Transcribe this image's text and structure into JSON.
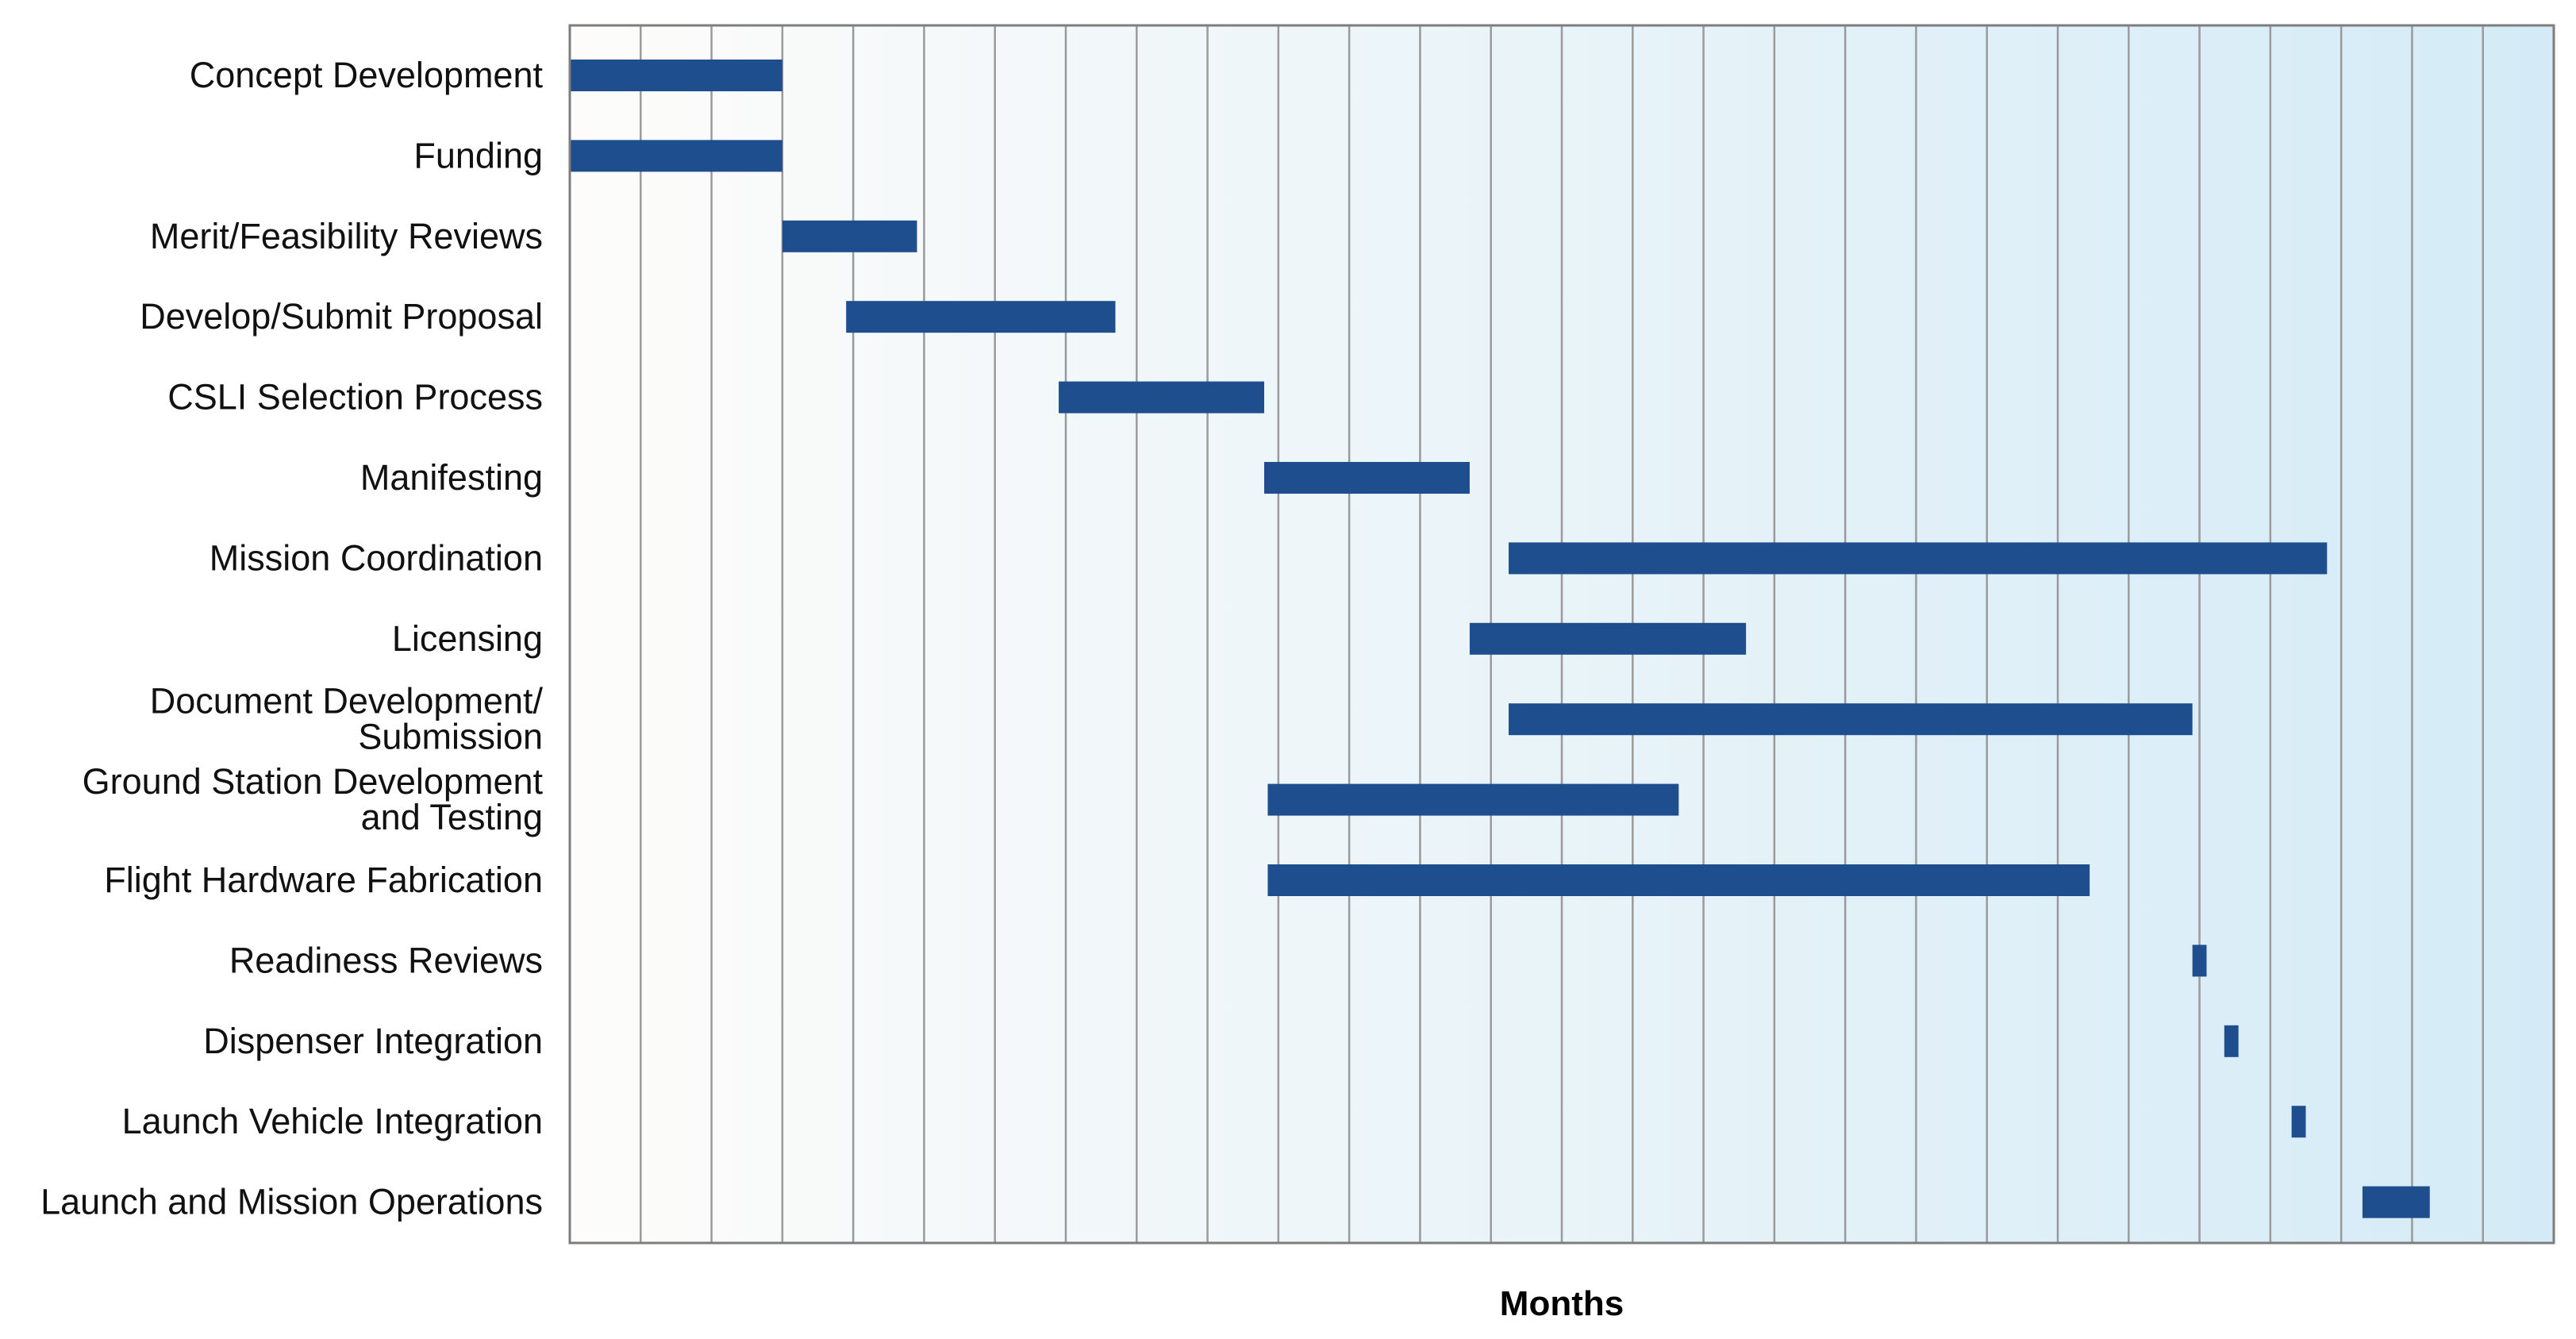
{
  "chart_data": {
    "type": "gantt",
    "title": "",
    "xlabel": "Months",
    "ylabel": "",
    "xlim": [
      0,
      28
    ],
    "grid": true,
    "colors": {
      "bar": "#1f4e8f",
      "grid_line": "#9a9a9a",
      "frame": "#7d7d7d",
      "background_start": "#fdfcfa",
      "background_end": "#d4ebf7"
    },
    "tasks": [
      {
        "label": [
          "Concept Development"
        ],
        "start": 0,
        "end": 3
      },
      {
        "label": [
          "Funding"
        ],
        "start": 0,
        "end": 3
      },
      {
        "label": [
          "Merit/Feasibility Reviews"
        ],
        "start": 3,
        "end": 4.9
      },
      {
        "label": [
          "Develop/Submit Proposal"
        ],
        "start": 3.9,
        "end": 7.7
      },
      {
        "label": [
          "CSLI Selection Process"
        ],
        "start": 6.9,
        "end": 9.8
      },
      {
        "label": [
          "Manifesting"
        ],
        "start": 9.8,
        "end": 12.7
      },
      {
        "label": [
          "Mission Coordination"
        ],
        "start": 13.25,
        "end": 24.8
      },
      {
        "label": [
          "Licensing"
        ],
        "start": 12.7,
        "end": 16.6
      },
      {
        "label": [
          "Document Development/",
          "Submission"
        ],
        "start": 13.25,
        "end": 22.9
      },
      {
        "label": [
          "Ground Station Development",
          "and Testing"
        ],
        "start": 9.85,
        "end": 15.65
      },
      {
        "label": [
          "Flight Hardware Fabrication"
        ],
        "start": 9.85,
        "end": 21.45
      },
      {
        "label": [
          "Readiness Reviews"
        ],
        "start": 22.9,
        "end": 23.1
      },
      {
        "label": [
          "Dispenser Integration"
        ],
        "start": 23.35,
        "end": 23.55
      },
      {
        "label": [
          "Launch Vehicle Integration"
        ],
        "start": 24.3,
        "end": 24.5
      },
      {
        "label": [
          "Launch and Mission Operations"
        ],
        "start": 25.3,
        "end": 26.25
      }
    ]
  }
}
